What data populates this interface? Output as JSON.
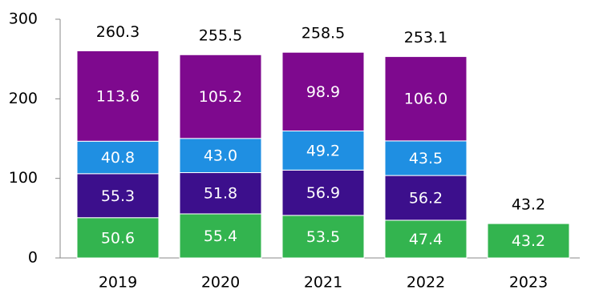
{
  "chart_data": {
    "type": "stacked_bar",
    "categories": [
      "2019",
      "2020",
      "2021",
      "2022",
      "2023"
    ],
    "series": [
      {
        "color": "#33b44f",
        "values": [
          50.6,
          55.4,
          53.5,
          47.4,
          43.2
        ],
        "value_labels": [
          "50.6",
          "55.4",
          "53.5",
          "47.4",
          "43.2"
        ]
      },
      {
        "color": "#3c0f8c",
        "values": [
          55.3,
          51.8,
          56.9,
          56.2,
          null
        ],
        "value_labels": [
          "55.3",
          "51.8",
          "56.9",
          "56.2",
          null
        ]
      },
      {
        "color": "#1f8fe2",
        "values": [
          40.8,
          43.0,
          49.2,
          43.5,
          null
        ],
        "value_labels": [
          "40.8",
          "43.0",
          "49.2",
          "43.5",
          null
        ]
      },
      {
        "color": "#7e098e",
        "values": [
          113.6,
          105.2,
          98.9,
          106.0,
          null
        ],
        "value_labels": [
          "113.6",
          "105.2",
          "98.9",
          "106.0",
          null
        ]
      }
    ],
    "totals": [
      260.3,
      255.5,
      258.5,
      253.1,
      43.2
    ],
    "ylim": [
      0,
      300
    ],
    "yticks": [
      0,
      100,
      200,
      300
    ]
  }
}
